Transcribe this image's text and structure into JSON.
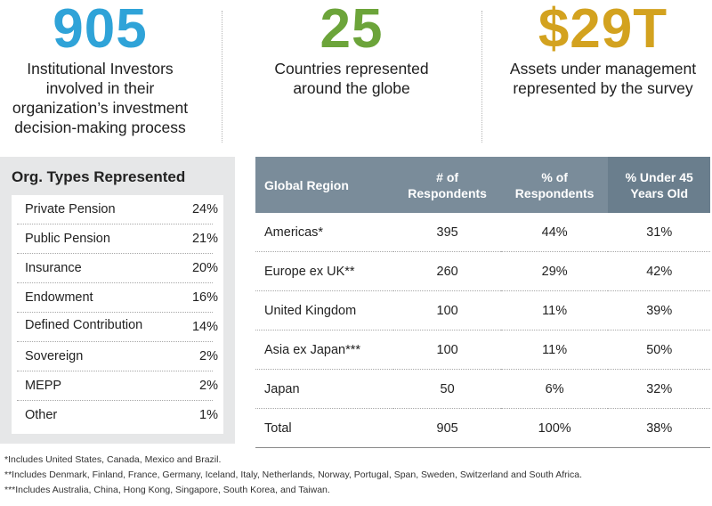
{
  "colors": {
    "blue": "#2fa3d8",
    "green": "#6ca43a",
    "gold": "#d3a21f"
  },
  "stats": [
    {
      "value": "905",
      "lines": [
        "Institutional Investors",
        "involved in their",
        "organization’s investment",
        "decision-making process"
      ]
    },
    {
      "value": "25",
      "lines": [
        "Countries represented",
        "around the globe"
      ]
    },
    {
      "value": "$29T",
      "lines": [
        "Assets under management",
        "represented by the survey"
      ]
    }
  ],
  "org_types": {
    "title": "Org. Types Represented",
    "rows": [
      {
        "name": "Private Pension",
        "pct": "24%"
      },
      {
        "name": "Public Pension",
        "pct": "21%"
      },
      {
        "name": "Insurance",
        "pct": "20%"
      },
      {
        "name": "Endowment",
        "pct": "16%"
      },
      {
        "name": "Defined Contribution",
        "pct": "14%"
      },
      {
        "name": "Sovereign",
        "pct": "2%"
      },
      {
        "name": "MEPP",
        "pct": "2%"
      },
      {
        "name": "Other",
        "pct": "1%"
      }
    ]
  },
  "region_table": {
    "headers": [
      [
        "Global Region"
      ],
      [
        "# of",
        "Respondents"
      ],
      [
        "% of",
        "Respondents"
      ],
      [
        "% Under 45",
        "Years Old"
      ]
    ],
    "rows": [
      [
        "Americas*",
        "395",
        "44%",
        "31%"
      ],
      [
        "Europe ex UK**",
        "260",
        "29%",
        "42%"
      ],
      [
        "United Kingdom",
        "100",
        "11%",
        "39%"
      ],
      [
        "Asia ex Japan***",
        "100",
        "11%",
        "50%"
      ],
      [
        "Japan",
        "50",
        "6%",
        "32%"
      ],
      [
        "Total",
        "905",
        "100%",
        "38%"
      ]
    ]
  },
  "footnotes": [
    "*Includes United States, Canada, Mexico and Brazil.",
    "**Includes Denmark, Finland, France, Germany, Iceland, Italy, Netherlands, Norway, Portugal, Span, Sweden, Switzerland and South Africa.",
    "***Includes Australia, China, Hong Kong, Singapore, South Korea, and Taiwan."
  ]
}
